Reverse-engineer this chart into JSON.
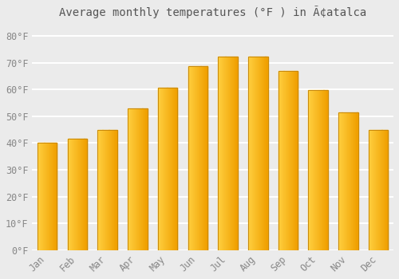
{
  "title": "Average monthly temperatures (°F ) in Ã¢atalca",
  "months": [
    "Jan",
    "Feb",
    "Mar",
    "Apr",
    "May",
    "Jun",
    "Jul",
    "Aug",
    "Sep",
    "Oct",
    "Nov",
    "Dec"
  ],
  "values": [
    40.1,
    41.5,
    44.8,
    52.8,
    60.8,
    68.7,
    72.2,
    72.2,
    67.0,
    59.7,
    51.5,
    44.8
  ],
  "bar_color_left": "#FFD040",
  "bar_color_right": "#F0A000",
  "bar_edge_color": "#C8880A",
  "background_color": "#ebebeb",
  "grid_color": "#ffffff",
  "ytick_labels": [
    "0°F",
    "10°F",
    "20°F",
    "30°F",
    "40°F",
    "50°F",
    "60°F",
    "70°F",
    "80°F"
  ],
  "ytick_values": [
    0,
    10,
    20,
    30,
    40,
    50,
    60,
    70,
    80
  ],
  "ylim": [
    0,
    85
  ],
  "title_fontsize": 10,
  "tick_fontsize": 8.5
}
